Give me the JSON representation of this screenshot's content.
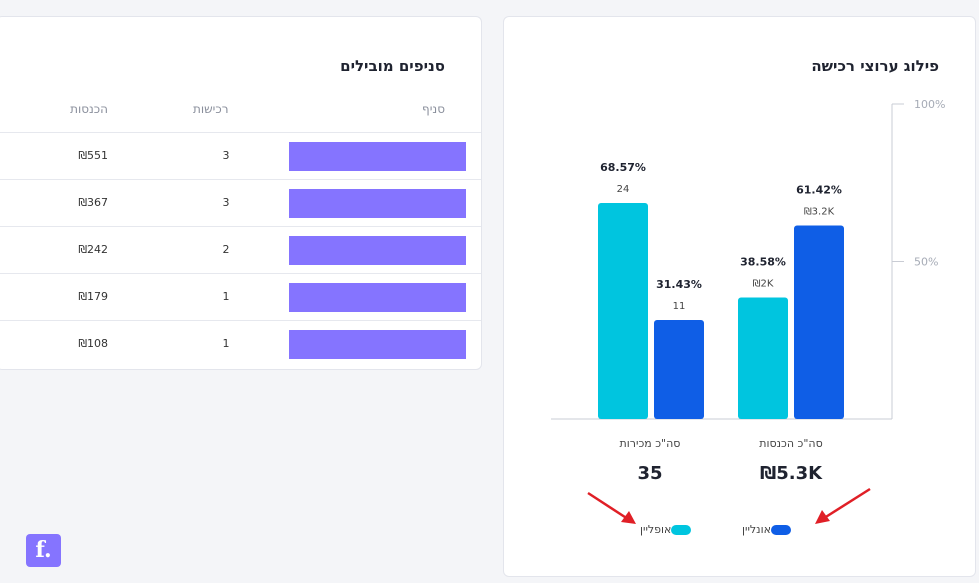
{
  "branches": {
    "title": "סניפים מובילים",
    "headers": {
      "branch": "סניף",
      "purchases": "רכישות",
      "revenue": "הכנסות"
    },
    "rows": [
      {
        "purchases": "3",
        "revenue": "₪551"
      },
      {
        "purchases": "3",
        "revenue": "₪367"
      },
      {
        "purchases": "2",
        "revenue": "₪242"
      },
      {
        "purchases": "1",
        "revenue": "₪179"
      },
      {
        "purchases": "1",
        "revenue": "₪108"
      }
    ]
  },
  "colors": {
    "offline": "#00c5df",
    "online": "#0f5ee6",
    "redacted": "#8574ff",
    "arrow": "#e01f26"
  },
  "chart_data": {
    "type": "bar",
    "title": "פילוג ערוצי רכישה",
    "categories": [
      "סה\"כ מכירות",
      "סה\"כ הכנסות"
    ],
    "ylim": [
      0,
      100
    ],
    "yticks": [
      {
        "value": 100,
        "label": "100%"
      },
      {
        "value": 50,
        "label": "50%"
      }
    ],
    "series": [
      {
        "name": "אופליין",
        "key": "offline",
        "values": [
          68.57,
          38.58
        ],
        "pct_labels": [
          "68.57%",
          "38.58%"
        ],
        "value_labels": [
          "24",
          "₪2K"
        ]
      },
      {
        "name": "אונליין",
        "key": "online",
        "values": [
          31.43,
          61.42
        ],
        "pct_labels": [
          "31.43%",
          "61.42%"
        ],
        "value_labels": [
          "11",
          "₪3.2K"
        ]
      }
    ],
    "totals": [
      {
        "label": "סה\"כ מכירות",
        "value": "35"
      },
      {
        "label": "סה\"כ הכנסות",
        "value": "₪5.3K"
      }
    ],
    "legend": [
      {
        "label": "אופליין",
        "key": "offline"
      },
      {
        "label": "אונליין",
        "key": "online"
      }
    ],
    "legend_position": "bottom"
  },
  "logo_text": "f."
}
